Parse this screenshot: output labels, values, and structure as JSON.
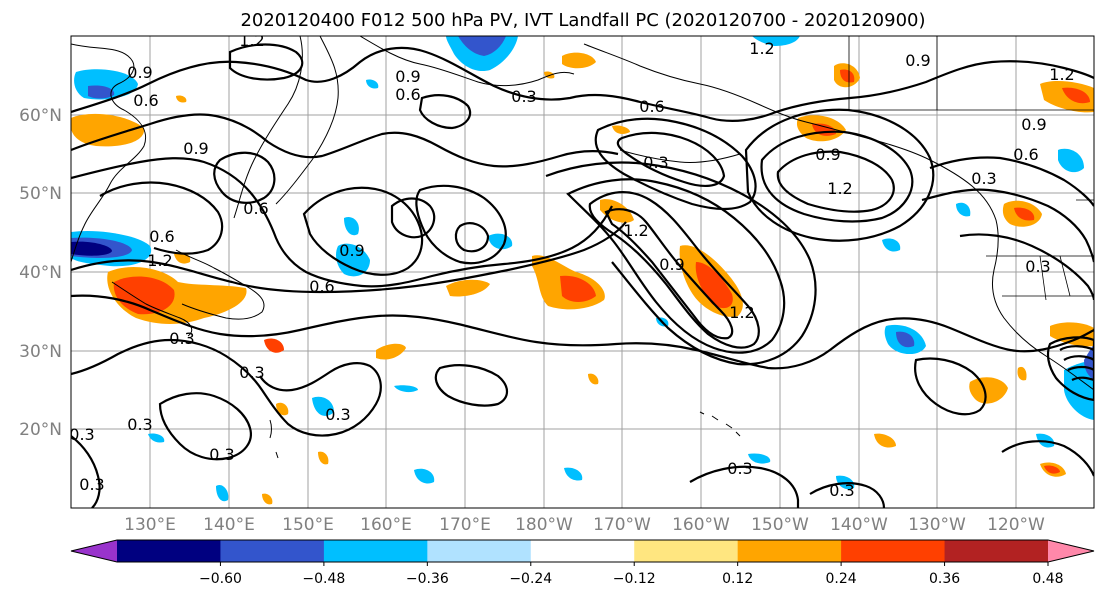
{
  "title": "2020120400 F012 500 hPa PV, IVT Landfall PC (2020120700 - 2020120900)",
  "map": {
    "lat_labels": [
      "60°N",
      "50°N",
      "40°N",
      "30°N",
      "20°N"
    ],
    "lon_labels": [
      "130°E",
      "140°E",
      "150°E",
      "160°E",
      "170°E",
      "180°W",
      "170°W",
      "160°W",
      "150°W",
      "140°W",
      "130°W",
      "120°W"
    ],
    "contour_labels": [
      "1.2",
      "0.9",
      "0.9",
      "1.2",
      "0.9",
      "0.6",
      "0.6",
      "1.2",
      "0.6",
      "0.3",
      "0.6",
      "0.9",
      "1.2",
      "0.9",
      "0.3",
      "0.6",
      "0.9",
      "1.2",
      "1.2",
      "0.9",
      "0.3",
      "0.9",
      "0.6",
      "0.3",
      "0.6",
      "1.2",
      "0.3",
      "0.3",
      "0.3",
      "0.3",
      "0.3",
      "0.3",
      "0.3",
      "0.3",
      "0.3"
    ],
    "colors": {
      "contour": "#000000",
      "grid": "#a0a0a0",
      "coast": "#000000"
    }
  },
  "colorbar": {
    "ticks": [
      "−0.60",
      "−0.48",
      "−0.36",
      "−0.24",
      "−0.12",
      "0.12",
      "0.24",
      "0.36",
      "0.48",
      "0.60"
    ],
    "colors": [
      "#9933cc",
      "#000080",
      "#3355cc",
      "#00bfff",
      "#b0e2ff",
      "#ffffff",
      "#ffe680",
      "#ffa500",
      "#ff4000",
      "#b22222",
      "#ff88aa"
    ]
  }
}
